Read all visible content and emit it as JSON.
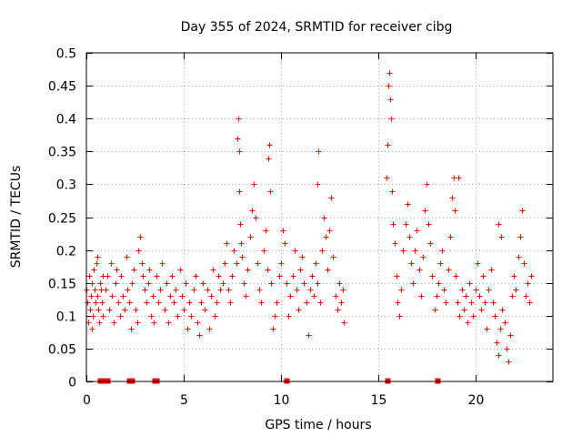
{
  "chart_data": {
    "type": "scatter",
    "title": "Day 355 of 2024, SRMTID for receiver cibg",
    "xlabel": "GPS time / hours",
    "ylabel": "SRMTID / TECUs",
    "xlim": [
      0,
      24
    ],
    "ylim": [
      0,
      0.5
    ],
    "xticks": [
      0,
      5,
      10,
      15,
      20
    ],
    "xtick_labels": [
      "0",
      "5",
      "10",
      "15",
      "20"
    ],
    "yticks": [
      0,
      0.05,
      0.1,
      0.15,
      0.2,
      0.25,
      0.3,
      0.35,
      0.4,
      0.45,
      0.5
    ],
    "ytick_labels": [
      "0",
      "0.05",
      "0.1",
      "0.15",
      "0.2",
      "0.25",
      "0.3",
      "0.35",
      "0.4",
      "0.45",
      "0.5"
    ],
    "grid": true,
    "marker": "+",
    "marker_color": "#ff0000",
    "series": [
      {
        "name": "SRMTID",
        "points": [
          [
            0.02,
            0.14
          ],
          [
            0.06,
            0.12
          ],
          [
            0.1,
            0.09
          ],
          [
            0.14,
            0.16
          ],
          [
            0.18,
            0.11
          ],
          [
            0.22,
            0.13
          ],
          [
            0.26,
            0.15
          ],
          [
            0.3,
            0.08
          ],
          [
            0.34,
            0.1
          ],
          [
            0.38,
            0.17
          ],
          [
            0.42,
            0.14
          ],
          [
            0.46,
            0.12
          ],
          [
            0.5,
            0.18
          ],
          [
            0.54,
            0.19
          ],
          [
            0.58,
            0.13
          ],
          [
            0.62,
            0.11
          ],
          [
            0.66,
            0.09
          ],
          [
            0.7,
            0.15
          ],
          [
            0.74,
            0.14
          ],
          [
            0.78,
            0.12
          ],
          [
            0.82,
            0.16
          ],
          [
            0.86,
            0.1
          ],
          [
            1.0,
            0.14
          ],
          [
            1.08,
            0.16
          ],
          [
            1.16,
            0.11
          ],
          [
            1.24,
            0.18
          ],
          [
            1.32,
            0.13
          ],
          [
            1.4,
            0.09
          ],
          [
            1.48,
            0.15
          ],
          [
            1.56,
            0.17
          ],
          [
            1.64,
            0.12
          ],
          [
            1.72,
            0.1
          ],
          [
            1.8,
            0.16
          ],
          [
            1.88,
            0.13
          ],
          [
            1.96,
            0.11
          ],
          [
            2.04,
            0.19
          ],
          [
            2.12,
            0.14
          ],
          [
            2.2,
            0.12
          ],
          [
            2.28,
            0.08
          ],
          [
            2.36,
            0.15
          ],
          [
            2.44,
            0.17
          ],
          [
            2.52,
            0.11
          ],
          [
            2.6,
            0.09
          ],
          [
            2.68,
            0.2
          ],
          [
            2.76,
            0.22
          ],
          [
            2.84,
            0.18
          ],
          [
            2.92,
            0.16
          ],
          [
            3.0,
            0.14
          ],
          [
            3.08,
            0.12
          ],
          [
            3.16,
            0.15
          ],
          [
            3.24,
            0.17
          ],
          [
            3.32,
            0.1
          ],
          [
            3.4,
            0.13
          ],
          [
            3.48,
            0.09
          ],
          [
            3.6,
            0.16
          ],
          [
            3.7,
            0.12
          ],
          [
            3.8,
            0.14
          ],
          [
            3.9,
            0.18
          ],
          [
            4.0,
            0.11
          ],
          [
            4.1,
            0.15
          ],
          [
            4.2,
            0.09
          ],
          [
            4.3,
            0.13
          ],
          [
            4.4,
            0.16
          ],
          [
            4.5,
            0.12
          ],
          [
            4.6,
            0.14
          ],
          [
            4.7,
            0.1
          ],
          [
            4.8,
            0.17
          ],
          [
            4.9,
            0.13
          ],
          [
            5.0,
            0.11
          ],
          [
            5.1,
            0.15
          ],
          [
            5.2,
            0.08
          ],
          [
            5.3,
            0.12
          ],
          [
            5.4,
            0.1
          ],
          [
            5.5,
            0.14
          ],
          [
            5.6,
            0.16
          ],
          [
            5.7,
            0.09
          ],
          [
            5.8,
            0.07
          ],
          [
            5.9,
            0.12
          ],
          [
            6.0,
            0.15
          ],
          [
            6.1,
            0.11
          ],
          [
            6.2,
            0.14
          ],
          [
            6.3,
            0.08
          ],
          [
            6.4,
            0.13
          ],
          [
            6.5,
            0.17
          ],
          [
            6.6,
            0.1
          ],
          [
            6.7,
            0.12
          ],
          [
            6.8,
            0.16
          ],
          [
            6.9,
            0.14
          ],
          [
            7.0,
            0.15
          ],
          [
            7.1,
            0.18
          ],
          [
            7.2,
            0.21
          ],
          [
            7.3,
            0.14
          ],
          [
            7.4,
            0.12
          ],
          [
            7.5,
            0.16
          ],
          [
            7.6,
            0.2
          ],
          [
            7.7,
            0.18
          ],
          [
            7.76,
            0.37
          ],
          [
            7.8,
            0.4
          ],
          [
            7.84,
            0.35
          ],
          [
            7.88,
            0.29
          ],
          [
            7.92,
            0.24
          ],
          [
            7.96,
            0.21
          ],
          [
            8.0,
            0.19
          ],
          [
            8.1,
            0.15
          ],
          [
            8.2,
            0.13
          ],
          [
            8.3,
            0.17
          ],
          [
            8.4,
            0.22
          ],
          [
            8.5,
            0.26
          ],
          [
            8.6,
            0.3
          ],
          [
            8.7,
            0.25
          ],
          [
            8.8,
            0.18
          ],
          [
            8.9,
            0.14
          ],
          [
            9.0,
            0.12
          ],
          [
            9.1,
            0.2
          ],
          [
            9.2,
            0.23
          ],
          [
            9.3,
            0.17
          ],
          [
            9.36,
            0.34
          ],
          [
            9.4,
            0.36
          ],
          [
            9.44,
            0.29
          ],
          [
            9.5,
            0.15
          ],
          [
            9.6,
            0.08
          ],
          [
            9.7,
            0.1
          ],
          [
            9.8,
            0.12
          ],
          [
            9.9,
            0.16
          ],
          [
            10.0,
            0.18
          ],
          [
            10.1,
            0.23
          ],
          [
            10.2,
            0.21
          ],
          [
            10.3,
            0.15
          ],
          [
            10.4,
            0.1
          ],
          [
            10.5,
            0.13
          ],
          [
            10.6,
            0.16
          ],
          [
            10.7,
            0.2
          ],
          [
            10.8,
            0.14
          ],
          [
            10.9,
            0.11
          ],
          [
            11.0,
            0.17
          ],
          [
            11.1,
            0.19
          ],
          [
            11.2,
            0.15
          ],
          [
            11.3,
            0.12
          ],
          [
            11.4,
            0.07
          ],
          [
            11.5,
            0.14
          ],
          [
            11.6,
            0.16
          ],
          [
            11.7,
            0.13
          ],
          [
            11.8,
            0.18
          ],
          [
            11.9,
            0.15
          ],
          [
            12.0,
            0.12
          ],
          [
            12.1,
            0.2
          ],
          [
            12.2,
            0.25
          ],
          [
            12.3,
            0.22
          ],
          [
            12.4,
            0.17
          ],
          [
            12.5,
            0.23
          ],
          [
            12.6,
            0.28
          ],
          [
            12.7,
            0.19
          ],
          [
            12.8,
            0.13
          ],
          [
            12.9,
            0.11
          ],
          [
            13.0,
            0.15
          ],
          [
            13.1,
            0.12
          ],
          [
            13.2,
            0.14
          ],
          [
            13.25,
            0.09
          ],
          [
            11.95,
            0.35
          ],
          [
            11.9,
            0.3
          ],
          [
            15.45,
            0.31
          ],
          [
            15.5,
            0.36
          ],
          [
            15.55,
            0.45
          ],
          [
            15.6,
            0.47
          ],
          [
            15.62,
            0.43
          ],
          [
            15.66,
            0.4
          ],
          [
            15.7,
            0.29
          ],
          [
            15.78,
            0.24
          ],
          [
            15.86,
            0.21
          ],
          [
            15.94,
            0.16
          ],
          [
            16.02,
            0.12
          ],
          [
            16.1,
            0.1
          ],
          [
            16.2,
            0.14
          ],
          [
            16.3,
            0.2
          ],
          [
            16.4,
            0.24
          ],
          [
            16.5,
            0.27
          ],
          [
            16.6,
            0.22
          ],
          [
            16.7,
            0.18
          ],
          [
            16.8,
            0.15
          ],
          [
            16.9,
            0.2
          ],
          [
            17.0,
            0.23
          ],
          [
            17.1,
            0.17
          ],
          [
            17.2,
            0.13
          ],
          [
            17.3,
            0.19
          ],
          [
            17.4,
            0.26
          ],
          [
            17.5,
            0.3
          ],
          [
            17.6,
            0.24
          ],
          [
            17.7,
            0.21
          ],
          [
            17.8,
            0.16
          ],
          [
            17.9,
            0.11
          ],
          [
            18.0,
            0.13
          ],
          [
            18.1,
            0.15
          ],
          [
            18.2,
            0.18
          ],
          [
            18.3,
            0.2
          ],
          [
            18.4,
            0.14
          ],
          [
            18.5,
            0.12
          ],
          [
            18.6,
            0.17
          ],
          [
            18.7,
            0.22
          ],
          [
            18.8,
            0.28
          ],
          [
            18.9,
            0.31
          ],
          [
            19.0,
            0.16
          ],
          [
            19.1,
            0.12
          ],
          [
            19.2,
            0.1
          ],
          [
            19.3,
            0.14
          ],
          [
            19.4,
            0.11
          ],
          [
            19.5,
            0.13
          ],
          [
            19.6,
            0.09
          ],
          [
            19.7,
            0.15
          ],
          [
            19.8,
            0.12
          ],
          [
            19.9,
            0.1
          ],
          [
            20.0,
            0.14
          ],
          [
            20.1,
            0.18
          ],
          [
            20.2,
            0.13
          ],
          [
            20.3,
            0.11
          ],
          [
            20.4,
            0.16
          ],
          [
            20.5,
            0.12
          ],
          [
            20.6,
            0.08
          ],
          [
            20.7,
            0.14
          ],
          [
            20.8,
            0.17
          ],
          [
            20.9,
            0.12
          ],
          [
            21.0,
            0.1
          ],
          [
            21.1,
            0.06
          ],
          [
            21.2,
            0.04
          ],
          [
            21.3,
            0.08
          ],
          [
            21.4,
            0.11
          ],
          [
            21.5,
            0.09
          ],
          [
            21.6,
            0.05
          ],
          [
            21.7,
            0.03
          ],
          [
            21.8,
            0.07
          ],
          [
            21.9,
            0.13
          ],
          [
            22.0,
            0.16
          ],
          [
            22.1,
            0.14
          ],
          [
            22.2,
            0.19
          ],
          [
            22.3,
            0.22
          ],
          [
            22.4,
            0.26
          ],
          [
            22.5,
            0.18
          ],
          [
            22.6,
            0.13
          ],
          [
            22.7,
            0.15
          ],
          [
            22.8,
            0.12
          ],
          [
            22.9,
            0.16
          ],
          [
            19.15,
            0.31
          ],
          [
            18.95,
            0.26
          ],
          [
            21.2,
            0.24
          ],
          [
            21.35,
            0.22
          ]
        ]
      }
    ],
    "zero_markers": [
      [
        0.7,
        0.0
      ],
      [
        0.82,
        0.0
      ],
      [
        0.94,
        0.0
      ],
      [
        1.06,
        0.0
      ],
      [
        2.2,
        0.0
      ],
      [
        2.35,
        0.0
      ],
      [
        3.5,
        0.0
      ],
      [
        3.62,
        0.0
      ],
      [
        10.3,
        0.0
      ],
      [
        15.5,
        0.0
      ],
      [
        18.05,
        0.0
      ]
    ]
  }
}
